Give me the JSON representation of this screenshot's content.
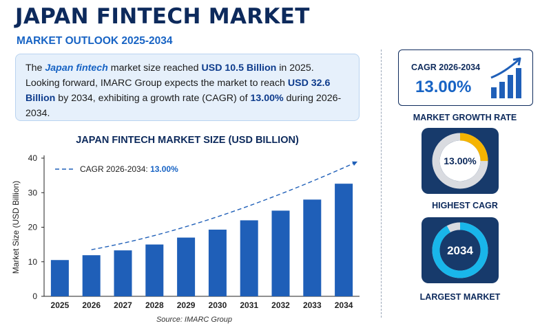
{
  "header": {
    "title": "JAPAN FINTECH MARKET",
    "subtitle": "MARKET OUTLOOK 2025-2034"
  },
  "summary": {
    "t1": "The ",
    "t2": "Japan fintech",
    "t3": " market size reached ",
    "t4": "USD 10.5 Billion",
    "t5": " in 2025. Looking forward, IMARC Group expects the market to reach ",
    "t6": "USD 32.6 Billion",
    "t7": " by 2034, exhibiting a growth rate (CAGR) of ",
    "t8": "13.00%",
    "t9": " during 2026-2034."
  },
  "source": "Source: IMARC Group",
  "colors": {
    "bar": "#1f5fb8",
    "trend": "#1f5fb8",
    "navy": "#0d2a5c",
    "donut_track": "#d9dbe0",
    "highest_cagr_arc": "#f5b400",
    "largest_market_arc": "#19b6ea"
  },
  "cagr_card": {
    "label": "CAGR 2026-2034",
    "value": "13.00%",
    "icon": "growth-bar-chart-icon"
  },
  "market_growth_rate": {
    "label": "MARKET GROWTH RATE"
  },
  "highest_cagr": {
    "value": "13.00%",
    "label": "HIGHEST CAGR",
    "arc_fraction": 0.25
  },
  "largest_market": {
    "value": "2034",
    "label": "LARGEST MARKET",
    "arc_fraction": 0.92
  },
  "chart_data": {
    "type": "bar",
    "title": "JAPAN FINTECH MARKET SIZE (USD BILLION)",
    "xlabel": "",
    "ylabel": "Market Size (USD Billion)",
    "ylim": [
      0,
      40
    ],
    "yticks": [
      0,
      10,
      20,
      30,
      40
    ],
    "grid": false,
    "categories": [
      "2025",
      "2026",
      "2027",
      "2028",
      "2029",
      "2030",
      "2031",
      "2032",
      "2033",
      "2034"
    ],
    "values": [
      10.5,
      11.9,
      13.3,
      15.0,
      17.0,
      19.3,
      22.0,
      24.8,
      28.0,
      32.6
    ],
    "trend": {
      "label": "CAGR 2026-2034: ",
      "value": "13.00%",
      "start_value": 13.5,
      "end_value": 39
    },
    "legend_position": "top-left"
  }
}
